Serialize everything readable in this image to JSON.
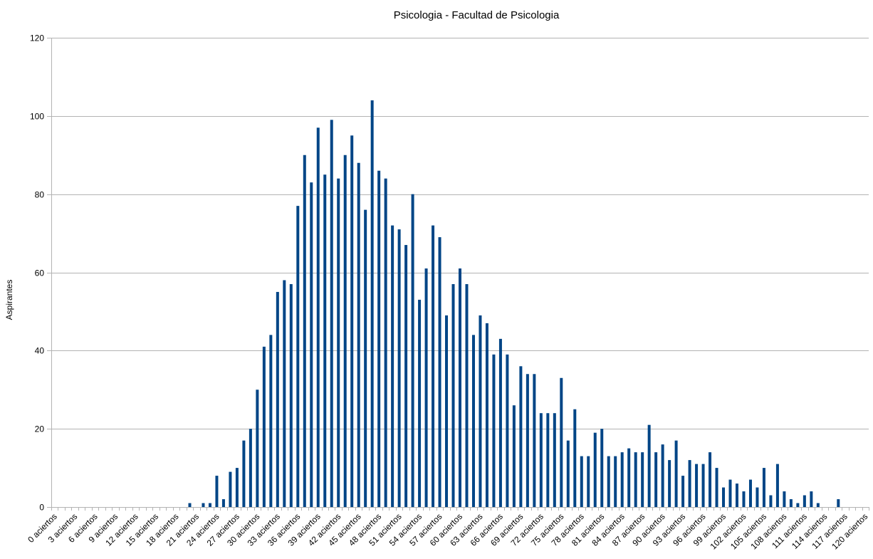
{
  "chart_data": {
    "type": "bar",
    "title": "Psicologia - Facultad de Psicologia",
    "xlabel": "",
    "ylabel": "Aspirantes",
    "ylim": [
      0,
      120
    ],
    "yticks": [
      0,
      20,
      40,
      60,
      80,
      100,
      120
    ],
    "grid": true,
    "legend": "none",
    "bar_color": "#004586",
    "grid_color": "#b3b3b3",
    "axis_color": "#b3b3b3",
    "category_suffix": "aciertos",
    "x_start": 0,
    "x_end": 120,
    "label_every": 3,
    "tick_labels": [
      "0 aciertos",
      "3 aciertos",
      "6 aciertos",
      "9 aciertos",
      "12 aciertos",
      "15 aciertos",
      "18 aciertos",
      "21 aciertos",
      "24 aciertos",
      "27 aciertos",
      "30 aciertos",
      "33 aciertos",
      "36 aciertos",
      "39 aciertos",
      "42 aciertos",
      "45 aciertos",
      "48 aciertos",
      "51 aciertos",
      "54 aciertos",
      "57 aciertos",
      "60 aciertos",
      "63 aciertos",
      "66 aciertos",
      "69 aciertos",
      "72 aciertos",
      "75 aciertos",
      "78 aciertos",
      "81 aciertos",
      "84 aciertos",
      "87 aciertos",
      "90 aciertos",
      "93 aciertos",
      "96 aciertos",
      "99 aciertos",
      "102 aciertos",
      "105 aciertos",
      "108 aciertos",
      "111 aciertos",
      "114 aciertos",
      "117 aciertos",
      "120 aciertos"
    ],
    "values": [
      0,
      0,
      0,
      0,
      0,
      0,
      0,
      0,
      0,
      0,
      0,
      0,
      0,
      0,
      0,
      0,
      0,
      0,
      0,
      0,
      1,
      0,
      1,
      1,
      8,
      2,
      9,
      10,
      17,
      20,
      30,
      41,
      44,
      55,
      58,
      57,
      77,
      90,
      83,
      97,
      85,
      99,
      84,
      90,
      95,
      88,
      76,
      104,
      86,
      84,
      72,
      71,
      67,
      80,
      53,
      61,
      72,
      69,
      49,
      57,
      61,
      57,
      44,
      49,
      47,
      39,
      43,
      39,
      26,
      36,
      34,
      34,
      24,
      24,
      24,
      33,
      17,
      25,
      13,
      13,
      19,
      20,
      13,
      13,
      14,
      15,
      14,
      14,
      21,
      14,
      16,
      12,
      17,
      8,
      12,
      11,
      11,
      14,
      10,
      5,
      7,
      6,
      4,
      7,
      5,
      10,
      3,
      11,
      4,
      2,
      1,
      3,
      4,
      1,
      0,
      0,
      2,
      0,
      0,
      0,
      0
    ]
  }
}
